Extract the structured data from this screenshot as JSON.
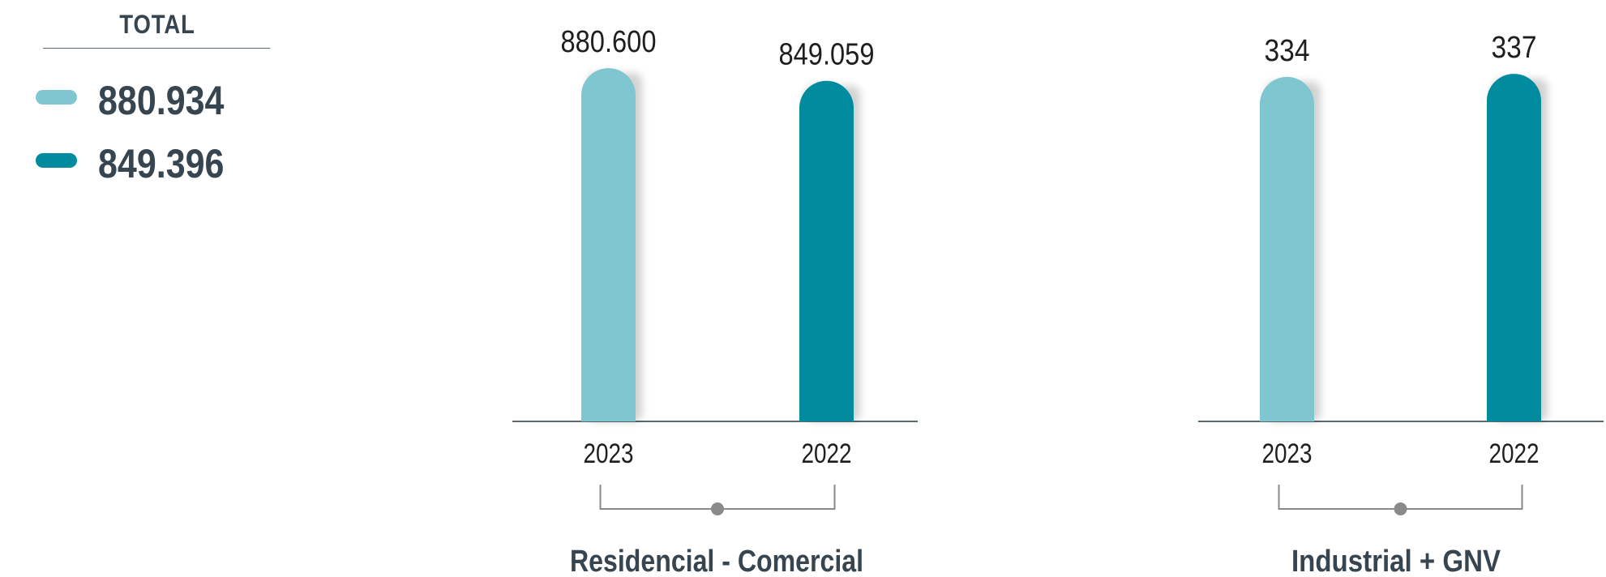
{
  "legend": {
    "title": "TOTAL",
    "items": [
      {
        "value": "880.934",
        "color": "#7fc6d0"
      },
      {
        "value": "849.396",
        "color": "#008c9e"
      }
    ]
  },
  "colors": {
    "light": "#7fc6d0",
    "dark": "#008c9e",
    "axis": "#5a6870",
    "bracket": "#8a8a8a"
  },
  "chart_data": [
    {
      "type": "bar",
      "title": "Residencial - Comercial",
      "categories": [
        "2023",
        "2022"
      ],
      "values": [
        880600,
        849059
      ],
      "value_labels": [
        "880.600",
        "849.059"
      ],
      "ylim": [
        0,
        905000
      ],
      "bar_colors": [
        "#7fc6d0",
        "#008c9e"
      ]
    },
    {
      "type": "bar",
      "title": "Industrial + GNV",
      "categories": [
        "2023",
        "2022"
      ],
      "values": [
        334,
        337
      ],
      "value_labels": [
        "334",
        "337"
      ],
      "ylim": [
        0,
        352
      ],
      "bar_colors": [
        "#7fc6d0",
        "#008c9e"
      ]
    }
  ]
}
